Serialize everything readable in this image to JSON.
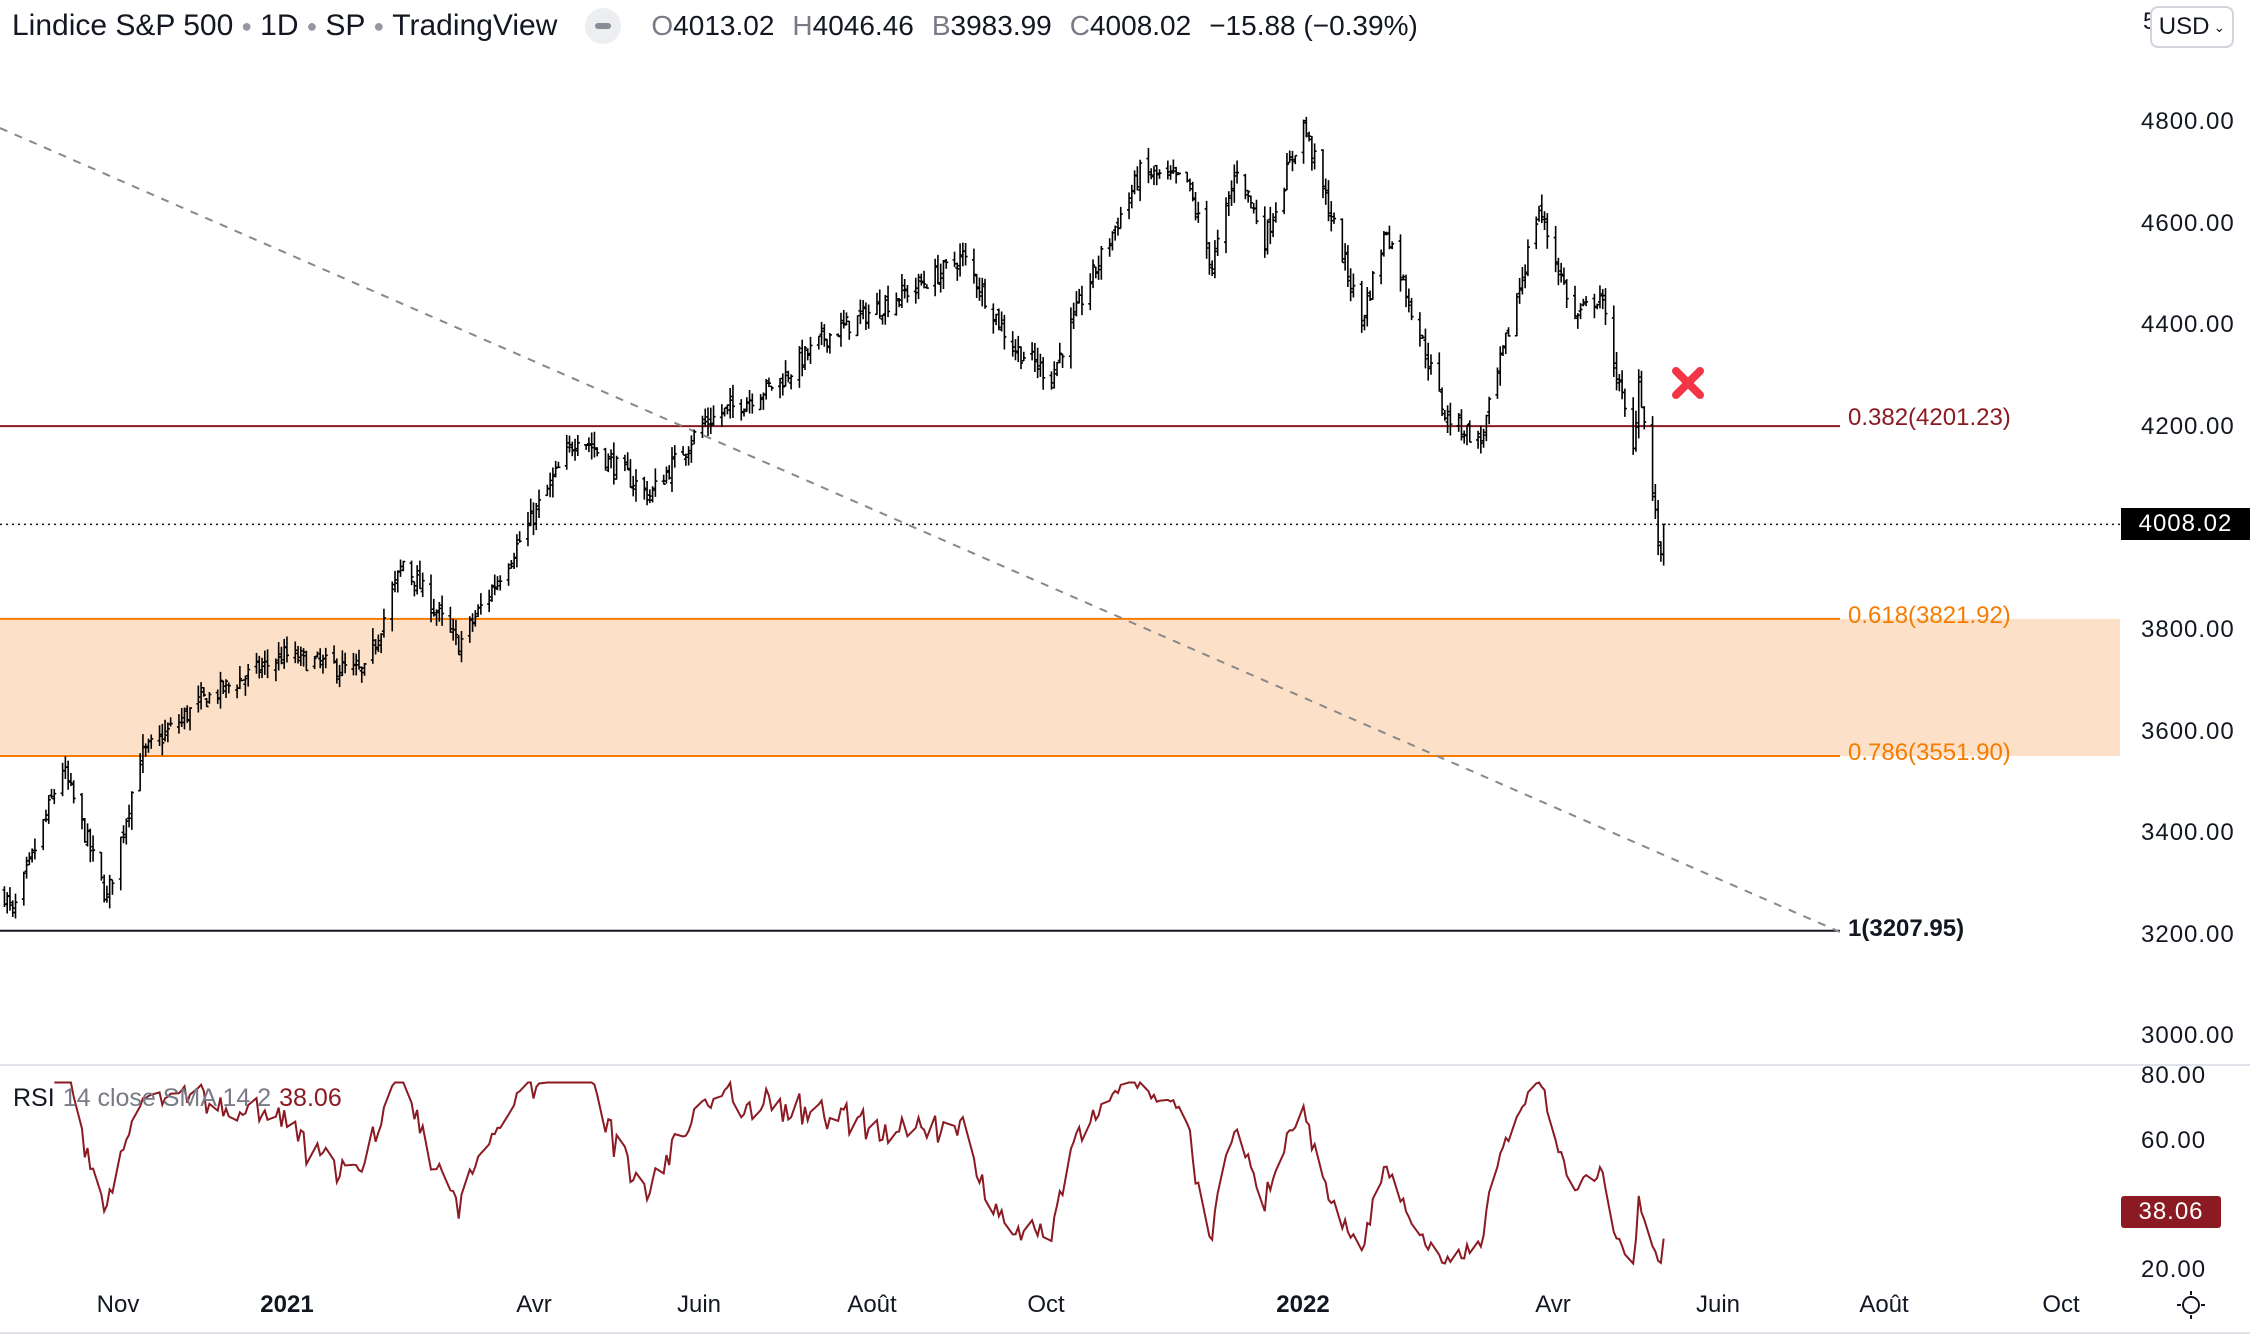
{
  "header": {
    "symbol": "Lindice S&P 500",
    "interval": "1D",
    "exchange": "SP",
    "source": "TradingView",
    "ohlc": {
      "o_label": "O",
      "o": "4013.02",
      "h_label": "H",
      "h": "4046.46",
      "l_label": "B",
      "l": "3983.99",
      "c_label": "C",
      "c": "4008.02",
      "change": "−15.88 (−0.39%)"
    }
  },
  "currency": "USD",
  "price_axis": [
    "4800.00",
    "4600.00",
    "4400.00",
    "4200.00",
    "3800.00",
    "3600.00",
    "3400.00",
    "3200.00",
    "3000.00"
  ],
  "price_axis_values": [
    4800,
    4600,
    4400,
    4200,
    3800,
    3600,
    3400,
    3200,
    3000
  ],
  "top_partial_label": "5",
  "current_price": "4008.02",
  "rsi": {
    "name": "RSI",
    "params": "14 close SMA 14 2",
    "value": "38.06",
    "axis": [
      "80.00",
      "60.00",
      "20.00"
    ],
    "axis_values": [
      80,
      60,
      20
    ]
  },
  "fib": [
    {
      "label": "0.382(4201.23)",
      "level": 4201.23,
      "color": "#8b1a22"
    },
    {
      "label": "0.618(3821.92)",
      "level": 3821.92,
      "color": "#f57c00"
    },
    {
      "label": "0.786(3551.90)",
      "level": 3551.9,
      "color": "#f57c00"
    },
    {
      "label": "1(3207.95)",
      "level": 3207.95,
      "color": "#131722"
    }
  ],
  "zone_color": "#fde0c8",
  "time_axis": [
    {
      "label": "Nov",
      "bold": false
    },
    {
      "label": "2021",
      "bold": true
    },
    {
      "label": "Avr",
      "bold": false
    },
    {
      "label": "Juin",
      "bold": false
    },
    {
      "label": "Août",
      "bold": false
    },
    {
      "label": "Oct",
      "bold": false
    },
    {
      "label": "2022",
      "bold": true
    },
    {
      "label": "Avr",
      "bold": false
    },
    {
      "label": "Juin",
      "bold": false
    },
    {
      "label": "Août",
      "bold": false
    },
    {
      "label": "Oct",
      "bold": false
    }
  ],
  "chart_data": {
    "type": "ohlc",
    "title": "S&P 500 1D",
    "ylim": [
      2950,
      5000
    ],
    "rsi_ylim": [
      15,
      85
    ],
    "close_anchors": [
      [
        "2020-09-21",
        3280
      ],
      [
        "2020-09-24",
        3240
      ],
      [
        "2020-10-12",
        3530
      ],
      [
        "2020-10-28",
        3270
      ],
      [
        "2020-11-09",
        3550
      ],
      [
        "2020-12-01",
        3660
      ],
      [
        "2020-12-31",
        3750
      ],
      [
        "2021-01-29",
        3715
      ],
      [
        "2021-02-12",
        3935
      ],
      [
        "2021-03-04",
        3770
      ],
      [
        "2021-03-26",
        3975
      ],
      [
        "2021-04-16",
        4185
      ],
      [
        "2021-05-12",
        4065
      ],
      [
        "2021-05-31",
        4205
      ],
      [
        "2021-06-28",
        4290
      ],
      [
        "2021-07-14",
        4375
      ],
      [
        "2021-08-27",
        4510
      ],
      [
        "2021-09-02",
        4536
      ],
      [
        "2021-09-20",
        4358
      ],
      [
        "2021-10-04",
        4300
      ],
      [
        "2021-10-14",
        4440
      ],
      [
        "2021-11-05",
        4700
      ],
      [
        "2021-11-22",
        4682
      ],
      [
        "2021-12-01",
        4515
      ],
      [
        "2021-12-10",
        4712
      ],
      [
        "2021-12-20",
        4570
      ],
      [
        "2022-01-03",
        4797
      ],
      [
        "2022-01-24",
        4410
      ],
      [
        "2022-02-02",
        4590
      ],
      [
        "2022-02-23",
        4225
      ],
      [
        "2022-03-08",
        4170
      ],
      [
        "2022-03-29",
        4630
      ],
      [
        "2022-04-11",
        4412
      ],
      [
        "2022-04-20",
        4460
      ],
      [
        "2022-05-02",
        4150
      ],
      [
        "2022-05-04",
        4300
      ],
      [
        "2022-05-12",
        3930
      ],
      [
        "2022-05-13",
        4008.02
      ]
    ]
  }
}
